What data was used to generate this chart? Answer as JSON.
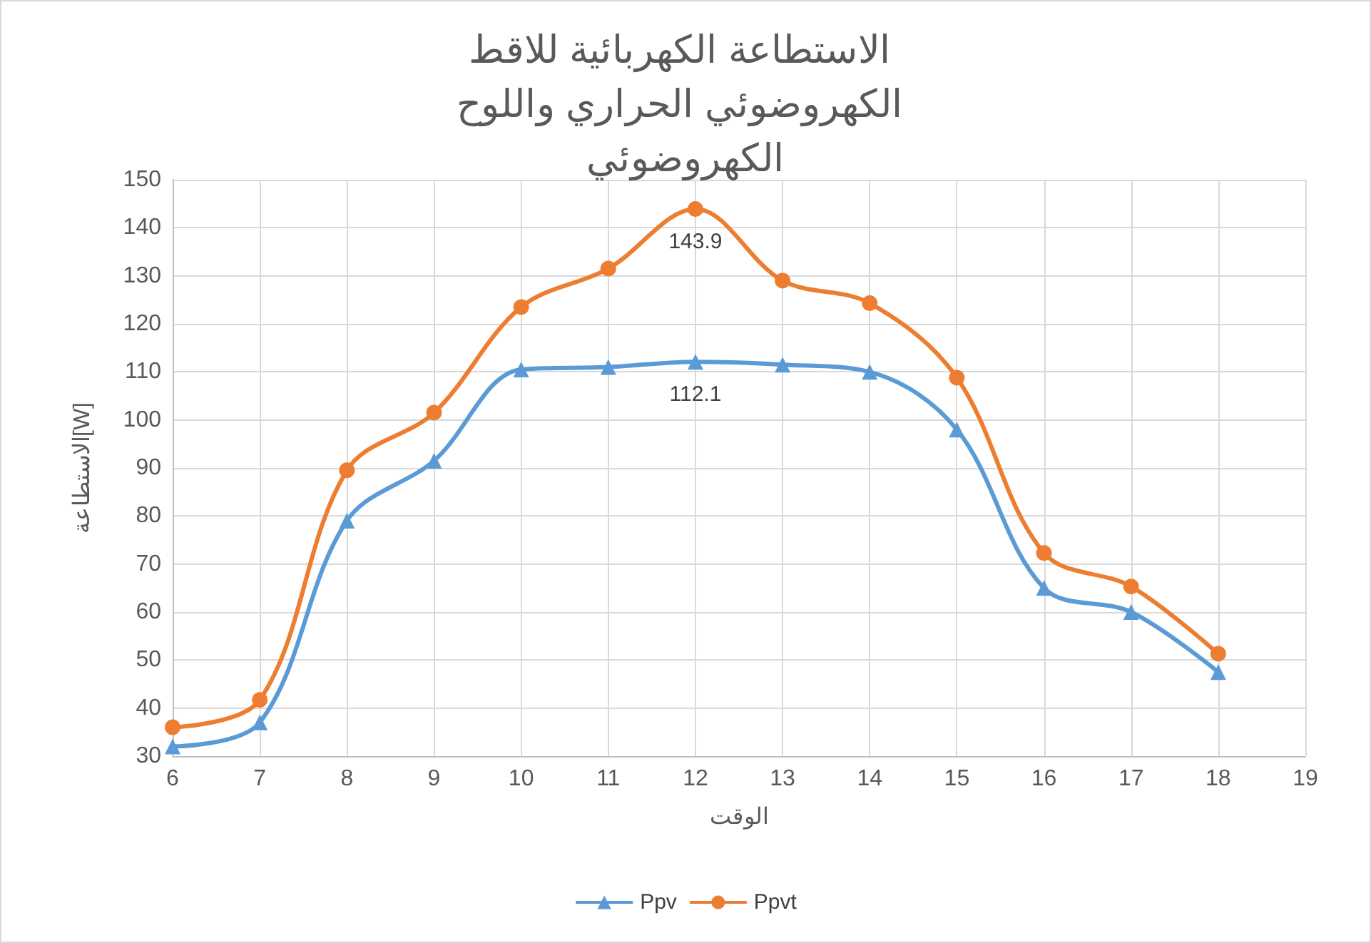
{
  "chart_data": {
    "type": "line",
    "title": "الاستطاعة الكهربائية للاقط الكهروضوئي الحراري واللوح الكهروضوئي",
    "xlabel": "الوقت",
    "ylabel": "الاستطاعة[W]",
    "x": [
      6,
      7,
      8,
      9,
      10,
      11,
      12,
      13,
      14,
      15,
      16,
      17,
      18
    ],
    "xlim": [
      6,
      19
    ],
    "xticks": [
      6,
      7,
      8,
      9,
      10,
      11,
      12,
      13,
      14,
      15,
      16,
      17,
      18,
      19
    ],
    "ylim": [
      30,
      150
    ],
    "yticks": [
      30,
      40,
      50,
      60,
      70,
      80,
      90,
      100,
      110,
      120,
      130,
      140,
      150
    ],
    "grid": true,
    "legend": "bottom",
    "line_style": "solid",
    "series": [
      {
        "name": "Ppv",
        "color": "#5b9bd5",
        "marker": "triangle",
        "values": [
          32,
          37,
          79,
          91.5,
          110.5,
          111,
          112.1,
          111.5,
          110,
          98,
          65,
          60,
          47.5
        ],
        "value_labels": [
          null,
          null,
          null,
          null,
          null,
          null,
          "112.1",
          null,
          null,
          null,
          null,
          null,
          null
        ]
      },
      {
        "name": "Ppvt",
        "color": "#ed7d31",
        "marker": "circle",
        "values": [
          36,
          41.7,
          89.5,
          101.5,
          123.5,
          131.5,
          143.9,
          129,
          124.3,
          108.8,
          72.3,
          65.3,
          51.3
        ],
        "value_labels": [
          null,
          null,
          null,
          null,
          null,
          null,
          "143.9",
          null,
          null,
          null,
          null,
          null,
          null
        ]
      }
    ]
  }
}
